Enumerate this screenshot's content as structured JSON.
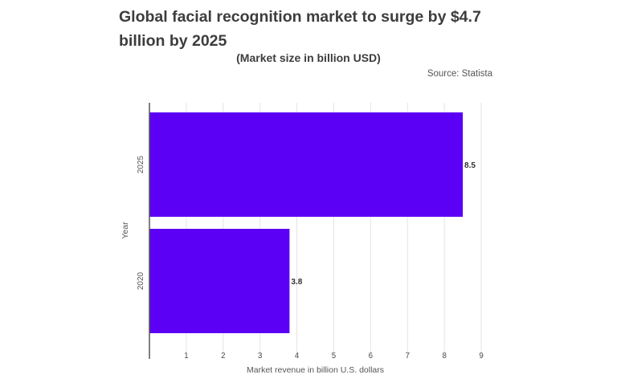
{
  "chart_data": {
    "type": "bar",
    "orientation": "horizontal",
    "title": "Global facial recognition market to surge by $4.7 billion by 2025",
    "subtitle": "(Market size in billion USD)",
    "source": "Source: Statista",
    "categories": [
      "2025",
      "2020"
    ],
    "values": [
      8.5,
      3.8
    ],
    "data_labels": [
      "8.5",
      "3.8"
    ],
    "xlabel": "Market revenue in billion U.S. dollars",
    "ylabel": "Year",
    "xlim": [
      0,
      9
    ],
    "xticks": [
      1,
      2,
      3,
      4,
      5,
      6,
      7,
      8,
      9
    ],
    "grid": true,
    "bar_color": "#5b00f5"
  }
}
